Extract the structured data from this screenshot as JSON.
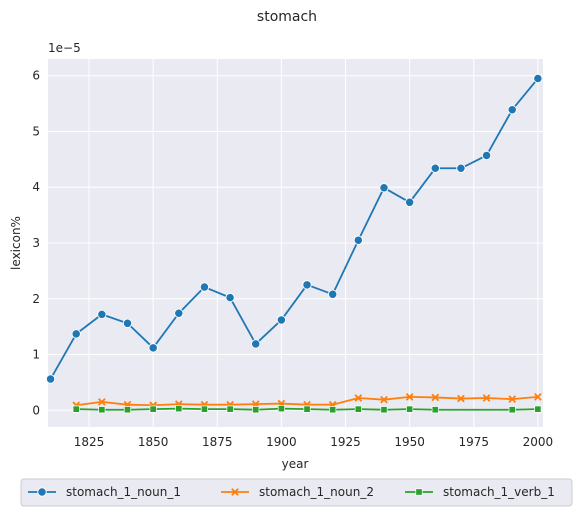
{
  "chart_data": {
    "type": "line",
    "title": "stomach",
    "xlabel": "year",
    "ylabel": "lexicon%",
    "y_offset_label": "1e−5",
    "xlim": [
      1809,
      2002
    ],
    "ylim": [
      -0.3,
      6.3
    ],
    "x_ticks": [
      1825,
      1850,
      1875,
      1900,
      1925,
      1950,
      1975,
      2000
    ],
    "y_ticks": [
      0,
      1,
      2,
      3,
      4,
      5,
      6
    ],
    "grid": true,
    "legend_position": "bottom",
    "series": [
      {
        "name": "stomach_1_noun_1",
        "color": "#1f77b4",
        "marker": "circle",
        "x": [
          1810,
          1820,
          1830,
          1840,
          1850,
          1860,
          1870,
          1880,
          1890,
          1900,
          1910,
          1920,
          1930,
          1940,
          1950,
          1960,
          1970,
          1980,
          1990,
          2000
        ],
        "y": [
          0.56,
          1.37,
          1.72,
          1.56,
          1.12,
          1.74,
          2.21,
          2.02,
          1.19,
          1.62,
          2.25,
          2.08,
          3.05,
          3.99,
          3.73,
          4.34,
          4.34,
          4.57,
          5.39,
          5.95
        ]
      },
      {
        "name": "stomach_1_noun_2",
        "color": "#ff7f0e",
        "marker": "x",
        "x": [
          1820,
          1830,
          1840,
          1850,
          1860,
          1870,
          1880,
          1890,
          1900,
          1910,
          1920,
          1930,
          1940,
          1950,
          1960,
          1970,
          1980,
          1990,
          2000
        ],
        "y": [
          0.09,
          0.15,
          0.1,
          0.09,
          0.11,
          0.1,
          0.1,
          0.11,
          0.12,
          0.1,
          0.1,
          0.22,
          0.19,
          0.24,
          0.23,
          0.21,
          0.22,
          0.2,
          0.24
        ]
      },
      {
        "name": "stomach_1_verb_1",
        "color": "#2ca02c",
        "marker": "square",
        "x": [
          1820,
          1830,
          1840,
          1850,
          1860,
          1870,
          1880,
          1890,
          1900,
          1910,
          1920,
          1930,
          1940,
          1950,
          1960,
          1990,
          2000
        ],
        "y": [
          0.02,
          0.01,
          0.01,
          0.02,
          0.03,
          0.02,
          0.02,
          0.01,
          0.03,
          0.02,
          0.01,
          0.02,
          0.01,
          0.02,
          0.01,
          0.01,
          0.02
        ]
      }
    ]
  }
}
